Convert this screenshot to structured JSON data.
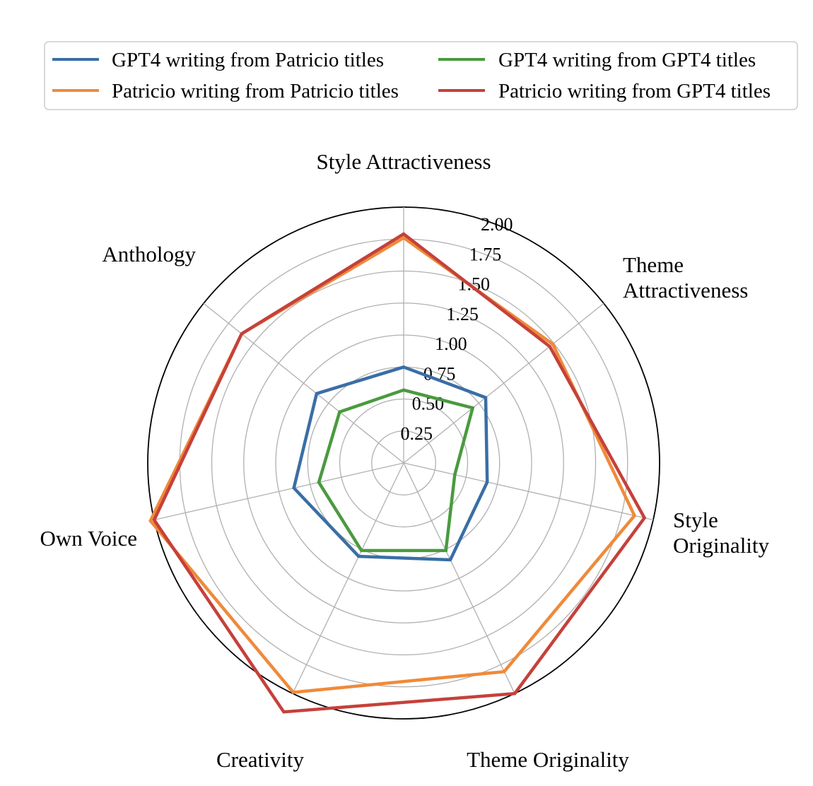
{
  "chart_data": {
    "type": "radar",
    "axes": [
      "Style Attractiveness",
      "Theme Attractiveness",
      "Style Originality",
      "Theme Originality",
      "Creativity",
      "Own Voice",
      "Anthology"
    ],
    "axis_label_lines": [
      [
        "Style Attractiveness"
      ],
      [
        "Theme",
        "Attractiveness"
      ],
      [
        "Style",
        "Originality"
      ],
      [
        "Theme Originality"
      ],
      [
        "Creativity"
      ],
      [
        "Own Voice"
      ],
      [
        "Anthology"
      ]
    ],
    "rlim": [
      0,
      2.0
    ],
    "ticks": [
      0.25,
      0.5,
      0.75,
      1.0,
      1.25,
      1.5,
      1.75,
      2.0
    ],
    "tick_labels": [
      "0.25",
      "0.50",
      "0.75",
      "1.00",
      "1.25",
      "1.50",
      "1.75",
      "2.00"
    ],
    "grid": true,
    "legend_position": "top",
    "series": [
      {
        "name": "GPT4 writing from Patricio titles",
        "color": "#3a6ea5",
        "values": [
          0.75,
          0.82,
          0.67,
          0.84,
          0.81,
          0.88,
          0.87
        ]
      },
      {
        "name": "Patricio writing from Patricio titles",
        "color": "#ef8a3a",
        "values": [
          1.76,
          1.49,
          1.85,
          1.81,
          1.99,
          2.03,
          1.62
        ]
      },
      {
        "name": "GPT4 writing from GPT4 titles",
        "color": "#4a9a3f",
        "values": [
          0.57,
          0.69,
          0.41,
          0.76,
          0.76,
          0.68,
          0.64
        ]
      },
      {
        "name": "Patricio writing from GPT4 titles",
        "color": "#c5413a",
        "values": [
          1.79,
          1.46,
          1.93,
          2.0,
          2.16,
          2.0,
          1.62
        ]
      }
    ],
    "legend_order": [
      0,
      2,
      1,
      3
    ]
  }
}
